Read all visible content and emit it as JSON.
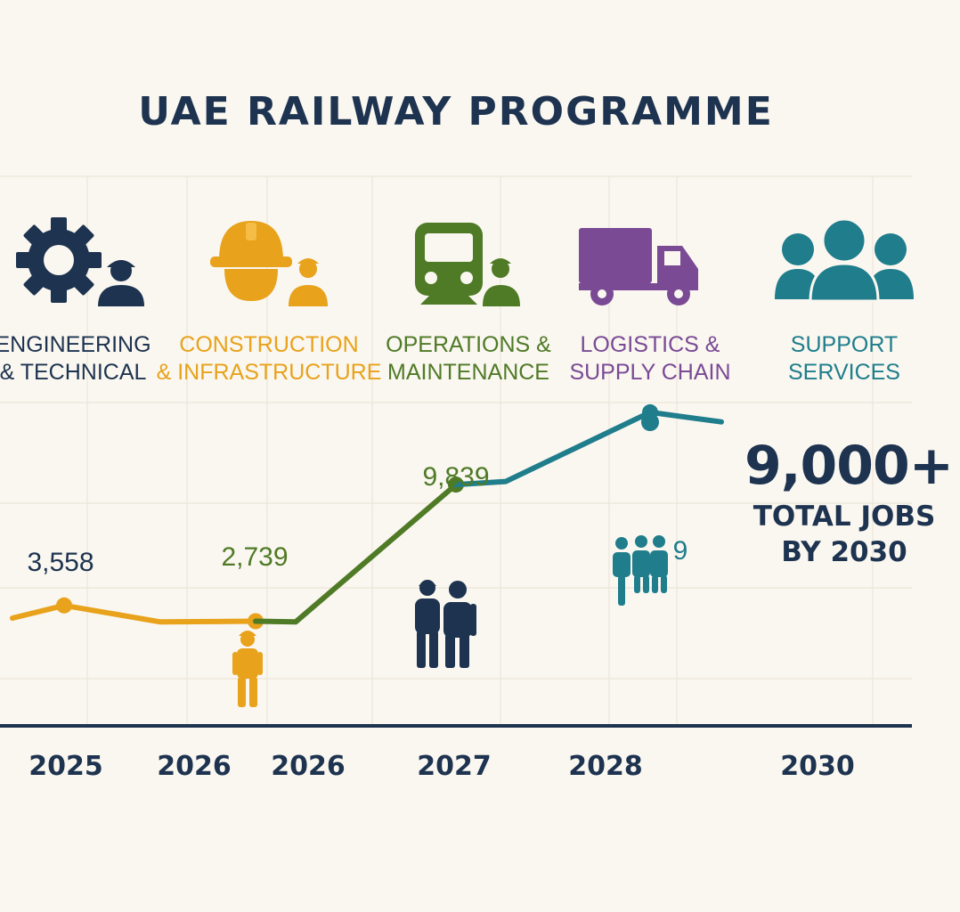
{
  "title": "UAE RAILWAY PROGRAMME",
  "categories": [
    {
      "line1": "ENGINEERING",
      "line2": "& TECHNICAL",
      "color": "#1d3350",
      "icon": "gear-worker-icon"
    },
    {
      "line1": "CONSTRUCTION",
      "line2": "& INFRASTRUCTURE",
      "color": "#e8a21b",
      "icon": "hardhat-worker-icon"
    },
    {
      "line1": "OPERATIONS &",
      "line2": "MAINTENANCE",
      "color": "#4f7a26",
      "icon": "train-worker-icon"
    },
    {
      "line1": "LOGISTICS &",
      "line2": "SUPPLY CHAIN",
      "color": "#7a4a95",
      "icon": "truck-icon"
    },
    {
      "line1": "SUPPORT",
      "line2": "SERVICES",
      "color": "#1f7d8c",
      "icon": "people-group-icon"
    }
  ],
  "total": {
    "value": "9,000+",
    "line1": "TOTAL JOBS",
    "line2": "BY 2030"
  },
  "chart_data": {
    "type": "line",
    "x_ticks": [
      "2025",
      "2026",
      "2026",
      "2027",
      "2028",
      "2030"
    ],
    "data_labels": [
      "3,558",
      "2,739",
      "9,839",
      "9"
    ],
    "series": [
      {
        "color": "#e8a21b",
        "values": [
          2900,
          3558,
          2700,
          2739
        ]
      },
      {
        "color": "#4f7a26",
        "values": [
          2739,
          2700,
          9839
        ]
      },
      {
        "color": "#1f7d8c",
        "values": [
          9839,
          10000,
          13600,
          13100
        ]
      }
    ],
    "legend": "none",
    "grid": true
  }
}
